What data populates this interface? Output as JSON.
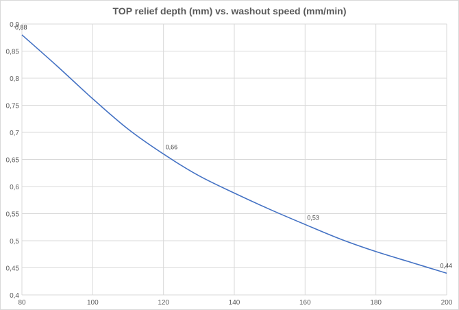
{
  "chart_data": {
    "type": "line",
    "title": "TOP relief depth (mm) vs. washout speed (mm/min)",
    "xlabel": "",
    "ylabel": "",
    "xlim": [
      80,
      200
    ],
    "ylim": [
      0.4,
      0.9
    ],
    "x_ticks": [
      80,
      100,
      120,
      140,
      160,
      180,
      200
    ],
    "x_tick_labels": [
      "80",
      "100",
      "120",
      "140",
      "160",
      "180",
      "200"
    ],
    "y_ticks": [
      0.4,
      0.45,
      0.5,
      0.55,
      0.6,
      0.65,
      0.7,
      0.75,
      0.8,
      0.85,
      0.9
    ],
    "y_tick_labels": [
      "0,4",
      "0,45",
      "0,5",
      "0,55",
      "0,6",
      "0,65",
      "0,7",
      "0,75",
      "0,8",
      "0,85",
      "0,9"
    ],
    "grid": true,
    "line_color": "#4472c4",
    "series": [
      {
        "x": [
          80,
          90,
          100,
          110,
          120,
          130,
          140,
          150,
          160,
          170,
          180,
          190,
          200
        ],
        "values": [
          0.88,
          0.822,
          0.762,
          0.706,
          0.66,
          0.62,
          0.588,
          0.558,
          0.53,
          0.503,
          0.48,
          0.46,
          0.44
        ]
      }
    ],
    "data_labels": [
      {
        "x": 80,
        "y": 0.88,
        "text": "0,88"
      },
      {
        "x": 120,
        "y": 0.66,
        "text": "0,66"
      },
      {
        "x": 160,
        "y": 0.53,
        "text": "0,53"
      },
      {
        "x": 200,
        "y": 0.44,
        "text": "0,44"
      }
    ]
  }
}
